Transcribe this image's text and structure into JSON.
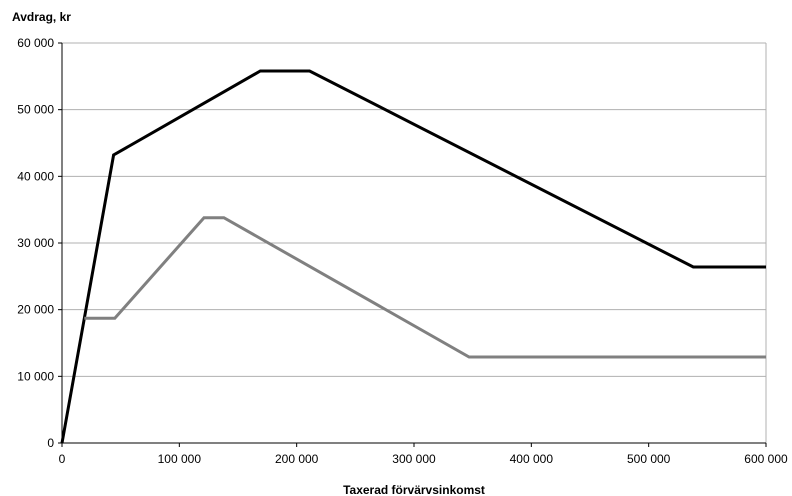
{
  "chart_data": {
    "type": "line",
    "title": "",
    "ylabel": "Avdrag, kr",
    "xlabel": "Taxerad förvärvsinkomst",
    "xlim": [
      0,
      600000
    ],
    "ylim": [
      0,
      60000
    ],
    "x_ticks": [
      0,
      100000,
      200000,
      300000,
      400000,
      500000,
      600000
    ],
    "x_tick_labels": [
      "0",
      "100 000",
      "200 000",
      "300 000",
      "400 000",
      "500 000",
      "600 000"
    ],
    "y_ticks": [
      0,
      10000,
      20000,
      30000,
      40000,
      50000,
      60000
    ],
    "y_tick_labels": [
      "0",
      "10 000",
      "20 000",
      "30 000",
      "40 000",
      "50 000",
      "60 000"
    ],
    "grid": "horizontal",
    "legend": "none",
    "series": [
      {
        "color": "#000000",
        "x": [
          0,
          44000,
          169000,
          211000,
          538000,
          600000
        ],
        "y": [
          0,
          43200,
          55800,
          55800,
          26400,
          26400
        ]
      },
      {
        "color": "#808080",
        "x": [
          19000,
          45000,
          121000,
          138000,
          347000,
          600000
        ],
        "y": [
          18700,
          18700,
          33800,
          33800,
          12900,
          12900
        ]
      }
    ]
  }
}
